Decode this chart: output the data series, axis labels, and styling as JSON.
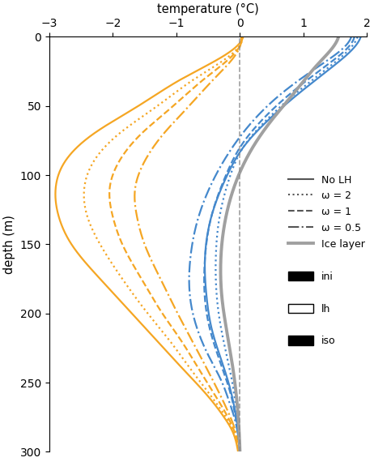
{
  "xlabel": "temperature (°C)",
  "ylabel": "depth (m)",
  "xlim": [
    -3,
    2
  ],
  "ylim": [
    300,
    0
  ],
  "xticks": [
    -3,
    -2,
    -1,
    0,
    1,
    2
  ],
  "yticks": [
    0,
    50,
    100,
    150,
    200,
    250,
    300
  ],
  "color_blue": "#4488CC",
  "color_orange": "#F5A623",
  "color_ice": "#A0A0A0",
  "legend_entries": [
    "No LH",
    "ω = 2",
    "ω = 1",
    "ω = 0.5",
    "Ice layer"
  ],
  "square_labels": [
    "ini",
    "lh",
    "iso"
  ],
  "orange_solid_depths": [
    0,
    15,
    30,
    50,
    70,
    90,
    110,
    130,
    150,
    175,
    200,
    220,
    240,
    260,
    275,
    285,
    295,
    300
  ],
  "orange_solid_temps": [
    0.05,
    -0.3,
    -0.9,
    -1.6,
    -2.3,
    -2.75,
    -2.9,
    -2.85,
    -2.65,
    -2.2,
    -1.7,
    -1.3,
    -0.9,
    -0.5,
    -0.25,
    -0.12,
    -0.05,
    -0.03
  ],
  "orange_dot_depths": [
    0,
    15,
    30,
    50,
    70,
    90,
    110,
    130,
    150,
    175,
    200,
    220,
    240,
    260,
    275,
    285,
    295,
    300
  ],
  "orange_dot_temps": [
    0.04,
    -0.2,
    -0.7,
    -1.3,
    -1.9,
    -2.3,
    -2.45,
    -2.4,
    -2.2,
    -1.85,
    -1.45,
    -1.1,
    -0.78,
    -0.45,
    -0.22,
    -0.1,
    -0.04,
    -0.02
  ],
  "orange_dash_depths": [
    0,
    15,
    30,
    50,
    70,
    90,
    110,
    130,
    150,
    175,
    200,
    220,
    240,
    260,
    275,
    285,
    295,
    300
  ],
  "orange_dash_temps": [
    0.03,
    -0.15,
    -0.55,
    -1.05,
    -1.55,
    -1.9,
    -2.05,
    -2.0,
    -1.85,
    -1.55,
    -1.22,
    -0.92,
    -0.65,
    -0.38,
    -0.19,
    -0.09,
    -0.03,
    -0.02
  ],
  "orange_dd_depths": [
    0,
    15,
    30,
    50,
    70,
    90,
    110,
    130,
    150,
    175,
    200,
    220,
    240,
    260,
    275,
    285,
    295,
    300
  ],
  "orange_dd_temps": [
    0.02,
    -0.1,
    -0.4,
    -0.8,
    -1.2,
    -1.5,
    -1.65,
    -1.62,
    -1.5,
    -1.25,
    -0.98,
    -0.75,
    -0.52,
    -0.3,
    -0.15,
    -0.07,
    -0.02,
    -0.01
  ],
  "blue_solid_depths": [
    0,
    10,
    20,
    40,
    60,
    80,
    100,
    130,
    160,
    190,
    210,
    230,
    250,
    265,
    275,
    285,
    295,
    300
  ],
  "blue_solid_temps": [
    1.9,
    1.75,
    1.5,
    0.95,
    0.45,
    0.05,
    -0.2,
    -0.45,
    -0.55,
    -0.52,
    -0.45,
    -0.32,
    -0.18,
    -0.1,
    -0.06,
    -0.03,
    -0.01,
    0.0
  ],
  "blue_dot_depths": [
    0,
    10,
    20,
    40,
    60,
    80,
    100,
    130,
    160,
    190,
    210,
    230,
    250,
    265,
    275,
    285,
    295,
    300
  ],
  "blue_dot_temps": [
    1.85,
    1.7,
    1.45,
    0.9,
    0.42,
    0.05,
    -0.15,
    -0.32,
    -0.38,
    -0.36,
    -0.3,
    -0.21,
    -0.12,
    -0.07,
    -0.04,
    -0.02,
    -0.01,
    0.0
  ],
  "blue_dash_depths": [
    0,
    10,
    20,
    40,
    60,
    80,
    100,
    130,
    160,
    190,
    210,
    230,
    250,
    265,
    275,
    285,
    295,
    300
  ],
  "blue_dash_temps": [
    1.8,
    1.65,
    1.38,
    0.82,
    0.35,
    0.0,
    -0.22,
    -0.45,
    -0.55,
    -0.55,
    -0.48,
    -0.35,
    -0.2,
    -0.11,
    -0.07,
    -0.03,
    -0.01,
    0.0
  ],
  "blue_dd_depths": [
    0,
    10,
    20,
    40,
    60,
    80,
    100,
    130,
    160,
    190,
    210,
    230,
    250,
    265,
    275,
    285,
    295,
    300
  ],
  "blue_dd_temps": [
    1.75,
    1.58,
    1.28,
    0.68,
    0.22,
    -0.12,
    -0.38,
    -0.65,
    -0.78,
    -0.78,
    -0.68,
    -0.5,
    -0.28,
    -0.16,
    -0.09,
    -0.04,
    -0.01,
    0.0
  ],
  "ice_depths": [
    0,
    10,
    20,
    35,
    50,
    65,
    80,
    100,
    130,
    160,
    190,
    220,
    250,
    280,
    300
  ],
  "ice_temps": [
    1.55,
    1.42,
    1.22,
    0.95,
    0.68,
    0.42,
    0.2,
    -0.02,
    -0.22,
    -0.3,
    -0.28,
    -0.18,
    -0.08,
    -0.02,
    0.0
  ]
}
